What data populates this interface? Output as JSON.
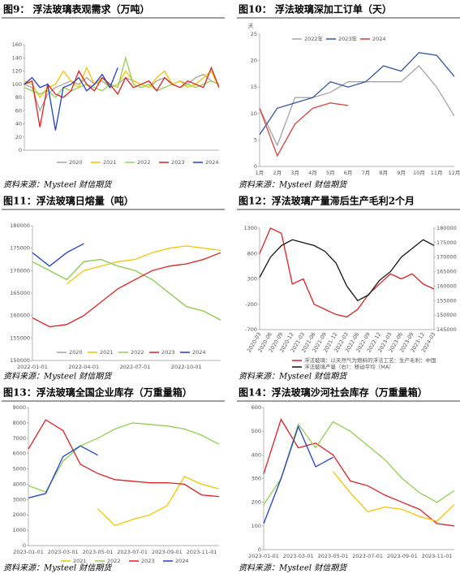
{
  "chart_data": [
    {
      "type": "line",
      "title": "图9：  浮法玻璃表观需求（万吨）",
      "source": "资料来源：Mysteel 财信期货",
      "categories": [
        null,
        null,
        null,
        null,
        null,
        null,
        null,
        null,
        null,
        null,
        null,
        null,
        null,
        null,
        null,
        null,
        null,
        null,
        null,
        null,
        null,
        null,
        null,
        null,
        null,
        null
      ],
      "ylim": [
        0,
        160
      ],
      "yticks": [
        0,
        20,
        40,
        60,
        80,
        100,
        120,
        140,
        160
      ],
      "legend": "bottom",
      "series": [
        {
          "name": "2020",
          "color": "#a5a5a5",
          "values": [
            100,
            95,
            60,
            85,
            95,
            100,
            105,
            100,
            110,
            100,
            105,
            95,
            100,
            110,
            105,
            100,
            95,
            105,
            110,
            100,
            105,
            100,
            110,
            115,
            105,
            100
          ]
        },
        {
          "name": "2021",
          "color": "#f5c400",
          "values": [
            105,
            100,
            80,
            95,
            100,
            120,
            105,
            95,
            125,
            100,
            110,
            95,
            100,
            120,
            105,
            100,
            95,
            110,
            120,
            100,
            105,
            95,
            100,
            110,
            120,
            95
          ]
        },
        {
          "name": "2022",
          "color": "#92d050",
          "values": [
            95,
            90,
            85,
            90,
            80,
            95,
            90,
            95,
            100,
            95,
            90,
            100,
            95,
            140,
            100,
            95,
            100,
            90,
            95,
            100,
            95,
            100,
            95,
            100,
            105,
            100
          ]
        },
        {
          "name": "2023",
          "color": "#e02020",
          "values": [
            100,
            105,
            35,
            100,
            85,
            80,
            90,
            120,
            100,
            90,
            110,
            100,
            85,
            110,
            95,
            100,
            105,
            90,
            110,
            100,
            95,
            105,
            100,
            95,
            125,
            95
          ]
        },
        {
          "name": "2024",
          "color": "#1f3fd0",
          "values": [
            100,
            110,
            95,
            100,
            30,
            95,
            100,
            110,
            90,
            100,
            115,
            95,
            125,
            null,
            null,
            null,
            null,
            null,
            null,
            null,
            null,
            null,
            null,
            null,
            null,
            null
          ]
        }
      ]
    },
    {
      "type": "line",
      "title": "图10：  浮法玻璃深加工订单（天）",
      "source": "资料来源：Mysteel 财信期货",
      "ylabel": "天",
      "categories": [
        "1月",
        "2月",
        "3月",
        "4月",
        "5月",
        "6月",
        "7月",
        "8月",
        "9月",
        "10月",
        "11月",
        "12月"
      ],
      "ylim": [
        0,
        25
      ],
      "yticks": [
        0,
        5,
        10,
        15,
        20,
        25
      ],
      "legend": "top",
      "series": [
        {
          "name": "2022年",
          "color": "#a5a5a5",
          "values": [
            11,
            4,
            13,
            13,
            14,
            16,
            16,
            16,
            16,
            19,
            15,
            9.5
          ]
        },
        {
          "name": "2023年",
          "color": "#2f55a4",
          "values": [
            6,
            11,
            12,
            13,
            16,
            15,
            16,
            19,
            18,
            21.5,
            21,
            17
          ]
        },
        {
          "name": "2024",
          "color": "#d9403a",
          "values": [
            11,
            2,
            8,
            11,
            12,
            11.5,
            null,
            null,
            null,
            null,
            null,
            null
          ]
        }
      ]
    },
    {
      "type": "line",
      "title": "图11：浮法玻璃日熔量（吨）",
      "source": "资料来源：Mysteel 财信期货",
      "categories": [
        "2022-01-01",
        null,
        null,
        "2022-04-01",
        null,
        null,
        "2022-07-01",
        null,
        null,
        "2022-10-01",
        null,
        null
      ],
      "ylim": [
        150000,
        180000
      ],
      "yticks": [
        150000,
        155000,
        160000,
        165000,
        170000,
        175000,
        180000
      ],
      "legend": "inside-bottom",
      "series": [
        {
          "name": "2020",
          "color": "#a5a5a5",
          "values": [
            172000,
            170000,
            168000,
            172000,
            172500,
            171000,
            170000,
            168000,
            165000,
            162000,
            161000,
            159000
          ]
        },
        {
          "name": "2021",
          "color": "#f5c400",
          "values": [
            null,
            null,
            167000,
            170000,
            171000,
            172000,
            172500,
            174000,
            175000,
            175500,
            175000,
            174500
          ]
        },
        {
          "name": "2022",
          "color": "#92d050",
          "values": [
            172000,
            170000,
            168000,
            172000,
            172500,
            171000,
            170000,
            168000,
            165000,
            162000,
            161000,
            159000
          ]
        },
        {
          "name": "2023",
          "color": "#e02020",
          "values": [
            159500,
            157500,
            158000,
            160000,
            163000,
            166000,
            168000,
            170000,
            171000,
            171500,
            172500,
            174000
          ]
        },
        {
          "name": "2024",
          "color": "#1f3fd0",
          "values": [
            174000,
            171000,
            174000,
            176000,
            null,
            null,
            null,
            null,
            null,
            null,
            null,
            null
          ]
        }
      ]
    },
    {
      "type": "line",
      "title": "图12：浮法玻璃产量滞后生产毛利2个月",
      "source": "资料来源：Mysteel 财信期货",
      "categories": [
        "2020-03",
        "2020-06",
        "2020-09",
        "2020-12",
        "2021-03",
        "2021-06",
        "2021-09",
        "2021-12",
        "2022-03",
        "2022-06",
        "2022-09",
        "2022-12",
        "2023-03",
        "2023-06",
        "2023-09",
        "2023-12",
        "2024-03"
      ],
      "ylim": [
        -700,
        1300
      ],
      "yticks": [
        -700,
        -200,
        300,
        800,
        1300
      ],
      "y2lim": [
        145000,
        180000
      ],
      "y2ticks": [
        145000,
        150000,
        155000,
        160000,
        165000,
        170000,
        175000,
        180000
      ],
      "legend": "bottom-stacked",
      "series": [
        {
          "name": "浮法玻璃：以天然气为燃料的浮法工艺：生产毛利：中国",
          "color": "#e02020",
          "values": [
            800,
            1300,
            1200,
            200,
            300,
            -200,
            -300,
            -400,
            -450,
            -300,
            0,
            200,
            400,
            300,
            400,
            200,
            100
          ]
        },
        {
          "name": "浮法玻璃产量（右）：移动平均（MA）",
          "color": "#111111",
          "axis": "y2",
          "values": [
            163000,
            170000,
            174000,
            176000,
            175000,
            174000,
            172000,
            168000,
            160000,
            155000,
            157000,
            162000,
            165000,
            170000,
            173000,
            176000,
            174000
          ]
        }
      ]
    },
    {
      "type": "line",
      "title": "图13：浮法玻璃全国企业库存（万重量箱）",
      "source": "资料来源：Mysteel 财信期货",
      "categories": [
        "2023-01-01",
        null,
        "2023-03-01",
        null,
        "2023-05-01",
        null,
        "2023-07-01",
        null,
        "2023-09-01",
        null,
        "2023-11-01",
        null
      ],
      "ylim": [
        0,
        9000
      ],
      "yticks": [
        0,
        1000,
        2000,
        3000,
        4000,
        5000,
        6000,
        7000,
        8000,
        9000
      ],
      "legend": "bottom",
      "series": [
        {
          "name": "2021",
          "color": "#f5c400",
          "values": [
            null,
            null,
            null,
            null,
            2400,
            1300,
            1700,
            2000,
            2600,
            4500,
            4000,
            3700
          ]
        },
        {
          "name": "2022",
          "color": "#92d050",
          "values": [
            3900,
            3500,
            5500,
            6500,
            7000,
            7600,
            8000,
            7900,
            7800,
            7600,
            7200,
            6600
          ]
        },
        {
          "name": "2023",
          "color": "#e02020",
          "values": [
            6300,
            8200,
            7500,
            5300,
            4700,
            4300,
            4200,
            4100,
            4100,
            4000,
            3300,
            3200
          ]
        },
        {
          "name": "2024",
          "color": "#1f3fd0",
          "values": [
            3100,
            3400,
            5800,
            6500,
            5900,
            null,
            null,
            null,
            null,
            null,
            null,
            null
          ]
        }
      ]
    },
    {
      "type": "line",
      "title": "图14：浮法玻璃沙河社会库存（万重量箱）",
      "source": "资料来源：Mysteel 财信期货",
      "categories": [
        "2023-01-01",
        null,
        "2023-03-01",
        null,
        "2023-05-01",
        null,
        "2023-07-01",
        null,
        "2023-09-01",
        null,
        "2023-11-01",
        null
      ],
      "ylim": [
        0,
        600
      ],
      "yticks": [
        0,
        100,
        200,
        300,
        400,
        500,
        600
      ],
      "series": [
        {
          "color": "#e02020",
          "values": [
            320,
            550,
            430,
            450,
            400,
            290,
            270,
            230,
            200,
            170,
            110,
            100
          ]
        },
        {
          "color": "#92d050",
          "values": [
            190,
            300,
            530,
            430,
            540,
            500,
            440,
            380,
            300,
            240,
            200,
            250
          ]
        },
        {
          "color": "#1f3fd0",
          "values": [
            110,
            300,
            520,
            350,
            390,
            null,
            null,
            null,
            null,
            null,
            null,
            null
          ]
        },
        {
          "color": "#f5c400",
          "values": [
            null,
            null,
            null,
            null,
            330,
            240,
            160,
            180,
            170,
            140,
            120,
            190
          ]
        }
      ]
    }
  ]
}
